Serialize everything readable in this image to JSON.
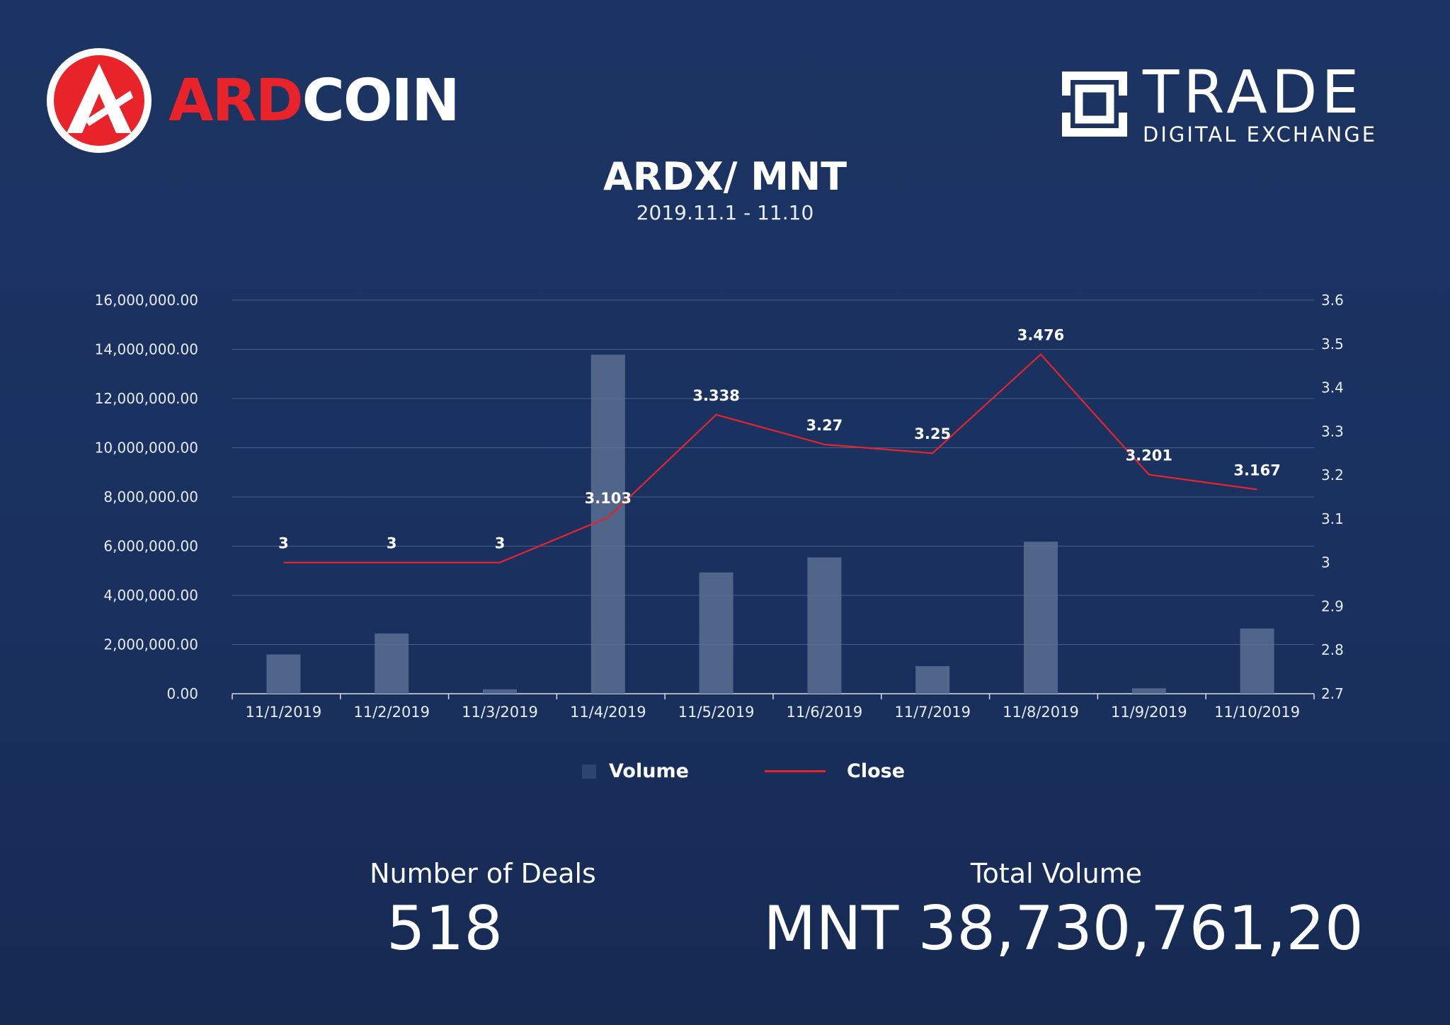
{
  "header": {
    "left_brand_part1": "ARD",
    "left_brand_part2": "COIN",
    "right_brand_title": "TRADE",
    "right_brand_subtitle": "DIGITAL EXCHANGE"
  },
  "stats": {
    "deals_label": "Number of Deals",
    "deals_value": "518",
    "volume_label": "Total Volume",
    "volume_value": "MNT 38,730,761,20"
  },
  "colors": {
    "accent": "#e8232a",
    "background": "#1c3463",
    "bar": "#5b6e92"
  },
  "chart_data": {
    "type": "bar",
    "title": "ARDX/ MNT",
    "subtitle": "2019.11.1 - 11.10",
    "categories": [
      "11/1/2019",
      "11/2/2019",
      "11/3/2019",
      "11/4/2019",
      "11/5/2019",
      "11/6/2019",
      "11/7/2019",
      "11/8/2019",
      "11/9/2019",
      "11/10/2019"
    ],
    "y_left": {
      "range": [
        0,
        16000000
      ],
      "ticks": [
        "0.00",
        "2,000,000.00",
        "4,000,000.00",
        "6,000,000.00",
        "8,000,000.00",
        "10,000,000.00",
        "12,000,000.00",
        "14,000,000.00",
        "16,000,000.00"
      ]
    },
    "y_right": {
      "range": [
        2.7,
        3.6
      ],
      "ticks": [
        "2.7",
        "2.8",
        "2.9",
        "3",
        "3.1",
        "3.2",
        "3.3",
        "3.4",
        "3.5",
        "3.6"
      ]
    },
    "grid": true,
    "legend_position": "bottom",
    "series": [
      {
        "name": "Volume",
        "type": "bar",
        "axis": "left",
        "values": [
          1600000,
          2450000,
          180000,
          13780000,
          4930000,
          5540000,
          1120000,
          6180000,
          220000,
          2650000
        ]
      },
      {
        "name": "Close",
        "type": "line",
        "axis": "right",
        "values": [
          3,
          3,
          3,
          3.103,
          3.338,
          3.27,
          3.25,
          3.476,
          3.201,
          3.167
        ],
        "labels": [
          "3",
          "3",
          "3",
          "3.103",
          "3.338",
          "3.27",
          "3.25",
          "3.476",
          "3.201",
          "3.167"
        ]
      }
    ]
  }
}
